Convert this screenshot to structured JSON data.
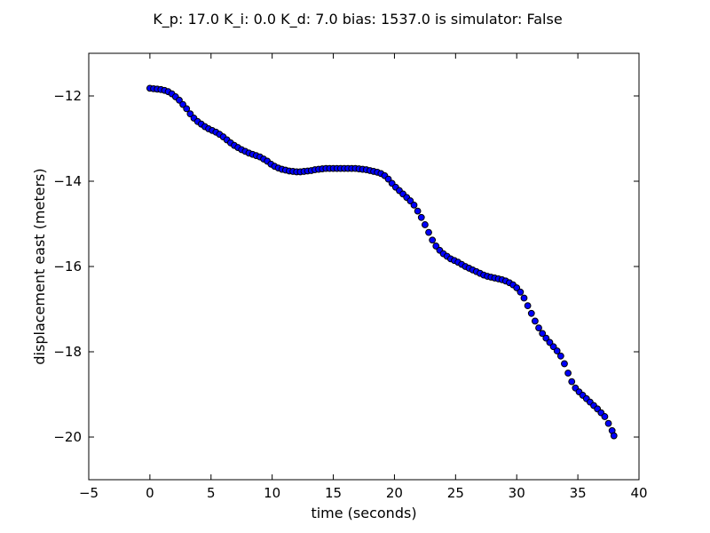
{
  "chart_data": {
    "type": "scatter",
    "title": "K_p: 17.0 K_i: 0.0 K_d: 7.0 bias: 1537.0 is simulator: False",
    "xlabel": "time (seconds)",
    "ylabel": "displacement east (meters)",
    "xlim": [
      -5,
      40
    ],
    "ylim": [
      -21,
      -11
    ],
    "xticks": [
      -5,
      0,
      5,
      10,
      15,
      20,
      25,
      30,
      35,
      40
    ],
    "xtick_labels": [
      "−5",
      "0",
      "5",
      "10",
      "15",
      "20",
      "25",
      "30",
      "35",
      "40"
    ],
    "yticks": [
      -20,
      -18,
      -16,
      -14,
      -12
    ],
    "ytick_labels": [
      "−20",
      "−18",
      "−16",
      "−14",
      "−12"
    ],
    "grid": false,
    "marker_color": "#0000ff",
    "marker_edge_color": "#000000",
    "series": [
      {
        "points": [
          [
            0.0,
            -11.82
          ],
          [
            0.3,
            -11.83
          ],
          [
            0.6,
            -11.84
          ],
          [
            0.9,
            -11.85
          ],
          [
            1.2,
            -11.87
          ],
          [
            1.5,
            -11.9
          ],
          [
            1.8,
            -11.95
          ],
          [
            2.1,
            -12.02
          ],
          [
            2.4,
            -12.1
          ],
          [
            2.7,
            -12.2
          ],
          [
            3.0,
            -12.3
          ],
          [
            3.3,
            -12.42
          ],
          [
            3.6,
            -12.52
          ],
          [
            3.9,
            -12.6
          ],
          [
            4.2,
            -12.66
          ],
          [
            4.5,
            -12.72
          ],
          [
            4.8,
            -12.77
          ],
          [
            5.1,
            -12.81
          ],
          [
            5.4,
            -12.85
          ],
          [
            5.7,
            -12.9
          ],
          [
            6.0,
            -12.96
          ],
          [
            6.3,
            -13.03
          ],
          [
            6.6,
            -13.1
          ],
          [
            6.9,
            -13.16
          ],
          [
            7.2,
            -13.21
          ],
          [
            7.5,
            -13.26
          ],
          [
            7.8,
            -13.3
          ],
          [
            8.1,
            -13.34
          ],
          [
            8.4,
            -13.37
          ],
          [
            8.7,
            -13.4
          ],
          [
            9.0,
            -13.43
          ],
          [
            9.3,
            -13.48
          ],
          [
            9.6,
            -13.53
          ],
          [
            9.9,
            -13.6
          ],
          [
            10.2,
            -13.65
          ],
          [
            10.5,
            -13.69
          ],
          [
            10.8,
            -13.72
          ],
          [
            11.1,
            -13.74
          ],
          [
            11.4,
            -13.76
          ],
          [
            11.7,
            -13.77
          ],
          [
            12.0,
            -13.78
          ],
          [
            12.3,
            -13.78
          ],
          [
            12.6,
            -13.77
          ],
          [
            12.9,
            -13.76
          ],
          [
            13.2,
            -13.75
          ],
          [
            13.5,
            -13.73
          ],
          [
            13.8,
            -13.72
          ],
          [
            14.1,
            -13.71
          ],
          [
            14.4,
            -13.7
          ],
          [
            14.7,
            -13.7
          ],
          [
            15.0,
            -13.7
          ],
          [
            15.3,
            -13.7
          ],
          [
            15.6,
            -13.7
          ],
          [
            15.9,
            -13.7
          ],
          [
            16.2,
            -13.7
          ],
          [
            16.5,
            -13.7
          ],
          [
            16.8,
            -13.7
          ],
          [
            17.1,
            -13.71
          ],
          [
            17.4,
            -13.72
          ],
          [
            17.7,
            -13.73
          ],
          [
            18.0,
            -13.75
          ],
          [
            18.3,
            -13.77
          ],
          [
            18.6,
            -13.79
          ],
          [
            18.9,
            -13.82
          ],
          [
            19.2,
            -13.87
          ],
          [
            19.5,
            -13.95
          ],
          [
            19.8,
            -14.05
          ],
          [
            20.1,
            -14.14
          ],
          [
            20.4,
            -14.22
          ],
          [
            20.7,
            -14.3
          ],
          [
            21.0,
            -14.38
          ],
          [
            21.3,
            -14.46
          ],
          [
            21.6,
            -14.56
          ],
          [
            21.9,
            -14.7
          ],
          [
            22.2,
            -14.85
          ],
          [
            22.5,
            -15.02
          ],
          [
            22.8,
            -15.2
          ],
          [
            23.1,
            -15.38
          ],
          [
            23.4,
            -15.52
          ],
          [
            23.7,
            -15.62
          ],
          [
            24.0,
            -15.7
          ],
          [
            24.3,
            -15.76
          ],
          [
            24.6,
            -15.82
          ],
          [
            24.9,
            -15.86
          ],
          [
            25.2,
            -15.9
          ],
          [
            25.5,
            -15.95
          ],
          [
            25.8,
            -16.0
          ],
          [
            26.1,
            -16.04
          ],
          [
            26.4,
            -16.08
          ],
          [
            26.7,
            -16.12
          ],
          [
            27.0,
            -16.16
          ],
          [
            27.3,
            -16.2
          ],
          [
            27.6,
            -16.23
          ],
          [
            27.9,
            -16.25
          ],
          [
            28.2,
            -16.27
          ],
          [
            28.5,
            -16.29
          ],
          [
            28.8,
            -16.31
          ],
          [
            29.1,
            -16.34
          ],
          [
            29.4,
            -16.38
          ],
          [
            29.7,
            -16.43
          ],
          [
            30.0,
            -16.5
          ],
          [
            30.3,
            -16.6
          ],
          [
            30.6,
            -16.74
          ],
          [
            30.9,
            -16.92
          ],
          [
            31.2,
            -17.1
          ],
          [
            31.5,
            -17.28
          ],
          [
            31.8,
            -17.44
          ],
          [
            32.1,
            -17.57
          ],
          [
            32.4,
            -17.68
          ],
          [
            32.7,
            -17.78
          ],
          [
            33.0,
            -17.88
          ],
          [
            33.3,
            -17.98
          ],
          [
            33.6,
            -18.1
          ],
          [
            33.9,
            -18.28
          ],
          [
            34.2,
            -18.5
          ],
          [
            34.5,
            -18.7
          ],
          [
            34.8,
            -18.85
          ],
          [
            35.1,
            -18.94
          ],
          [
            35.4,
            -19.02
          ],
          [
            35.7,
            -19.1
          ],
          [
            36.0,
            -19.18
          ],
          [
            36.3,
            -19.26
          ],
          [
            36.6,
            -19.34
          ],
          [
            36.9,
            -19.43
          ],
          [
            37.2,
            -19.52
          ],
          [
            37.5,
            -19.68
          ],
          [
            37.8,
            -19.85
          ],
          [
            37.95,
            -19.97
          ]
        ]
      }
    ]
  }
}
